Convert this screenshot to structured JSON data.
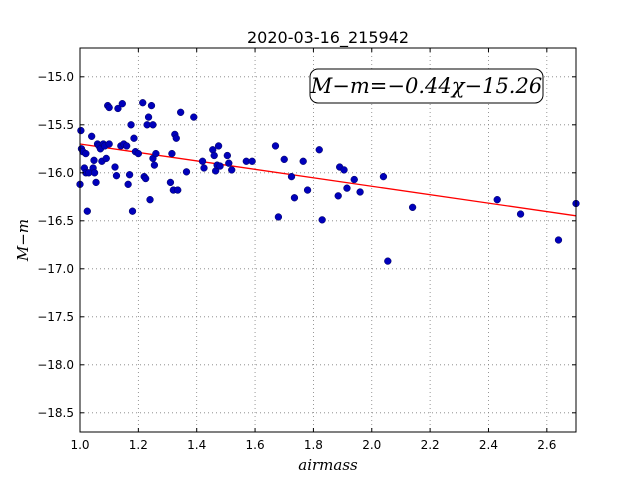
{
  "chart_data": {
    "type": "scatter",
    "title": "2020-03-16_215942",
    "xlabel": "airmass",
    "ylabel": "M−m",
    "xlim": [
      1.0,
      2.7
    ],
    "ylim": [
      -18.7,
      -14.7
    ],
    "grid": true,
    "legend": "none",
    "x_ticks": [
      "1.0",
      "1.2",
      "1.4",
      "1.6",
      "1.8",
      "2.0",
      "2.2",
      "2.4",
      "2.6"
    ],
    "y_ticks": [
      "−15.0",
      "−15.5",
      "−16.0",
      "−16.5",
      "−17.0",
      "−17.5",
      "−18.0",
      "−18.5"
    ],
    "x_tick_values": [
      1.0,
      1.2,
      1.4,
      1.6,
      1.8,
      2.0,
      2.2,
      2.4,
      2.6
    ],
    "y_tick_values": [
      -15.0,
      -15.5,
      -16.0,
      -16.5,
      -17.0,
      -17.5,
      -18.0,
      -18.5
    ],
    "annotation": "M−m=−0.44χ−15.26",
    "fit": {
      "slope": -0.44,
      "intercept": -15.26,
      "color": "#ff0000"
    },
    "point_color": "#0000bb",
    "series": [
      {
        "x": [
          1.0,
          1.003,
          1.005,
          1.01,
          1.015,
          1.02,
          1.02,
          1.025,
          1.03,
          1.04,
          1.045,
          1.048,
          1.05,
          1.055,
          1.06,
          1.065,
          1.07,
          1.075,
          1.08,
          1.085,
          1.09,
          1.095,
          1.1,
          1.1,
          1.12,
          1.125,
          1.13,
          1.14,
          1.145,
          1.15,
          1.16,
          1.165,
          1.17,
          1.175,
          1.18,
          1.185,
          1.19,
          1.2,
          1.215,
          1.22,
          1.225,
          1.23,
          1.235,
          1.24,
          1.245,
          1.25,
          1.25,
          1.255,
          1.26,
          1.31,
          1.315,
          1.32,
          1.325,
          1.33,
          1.335,
          1.345,
          1.365,
          1.39,
          1.42,
          1.425,
          1.455,
          1.46,
          1.465,
          1.47,
          1.475,
          1.48,
          1.505,
          1.51,
          1.52,
          1.57,
          1.59,
          1.67,
          1.68,
          1.7,
          1.725,
          1.735,
          1.765,
          1.78,
          1.82,
          1.83,
          1.885,
          1.89,
          1.905,
          1.915,
          1.94,
          1.96,
          2.04,
          2.055,
          2.14,
          2.43,
          2.51,
          2.64,
          2.7
        ],
        "y": [
          -16.12,
          -15.56,
          -15.75,
          -15.78,
          -15.95,
          -15.8,
          -16.0,
          -16.4,
          -16.0,
          -15.62,
          -15.95,
          -15.87,
          -16.0,
          -16.1,
          -15.7,
          -15.72,
          -15.75,
          -15.88,
          -15.7,
          -15.72,
          -15.85,
          -15.3,
          -15.7,
          -15.32,
          -15.94,
          -16.03,
          -15.33,
          -15.72,
          -15.28,
          -15.7,
          -15.72,
          -16.12,
          -16.02,
          -15.5,
          -16.4,
          -15.64,
          -15.78,
          -15.8,
          -15.27,
          -16.04,
          -16.06,
          -15.5,
          -15.42,
          -16.28,
          -15.3,
          -15.5,
          -15.85,
          -15.92,
          -15.8,
          -16.1,
          -15.8,
          -16.18,
          -15.6,
          -15.64,
          -16.18,
          -15.37,
          -15.99,
          -15.42,
          -15.88,
          -15.95,
          -15.76,
          -15.82,
          -15.98,
          -15.92,
          -15.72,
          -15.93,
          -15.82,
          -15.9,
          -15.97,
          -15.88,
          -15.88,
          -15.72,
          -16.46,
          -15.86,
          -16.04,
          -16.26,
          -15.88,
          -16.18,
          -15.76,
          -16.49,
          -16.24,
          -15.94,
          -15.97,
          -16.16,
          -16.07,
          -16.2,
          -16.04,
          -16.92,
          -16.36,
          -16.28,
          -16.43,
          -16.7,
          -16.32
        ]
      }
    ]
  }
}
